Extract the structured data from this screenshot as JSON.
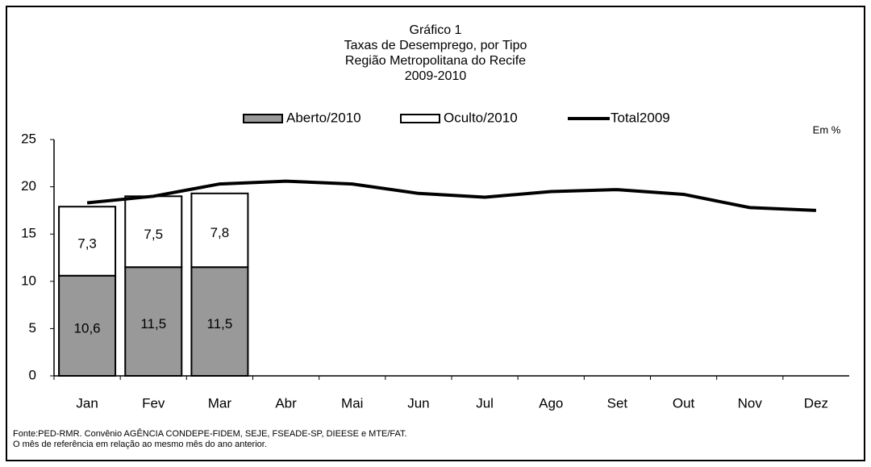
{
  "chart_data": {
    "type": "bar",
    "title_lines": [
      "Gráfico 1",
      "Taxas de Desemprego, por Tipo",
      "Região Metropolitana do Recife",
      "2009-2010"
    ],
    "unit_note": "Em %",
    "categories": [
      "Jan",
      "Fev",
      "Mar",
      "Abr",
      "Mai",
      "Jun",
      "Jul",
      "Ago",
      "Set",
      "Out",
      "Nov",
      "Dez"
    ],
    "series": [
      {
        "name": "Aberto/2010",
        "type": "bar",
        "color": "#999999",
        "values": [
          10.6,
          11.5,
          11.5,
          null,
          null,
          null,
          null,
          null,
          null,
          null,
          null,
          null
        ],
        "value_labels": [
          "10,6",
          "11,5",
          "11,5",
          null,
          null,
          null,
          null,
          null,
          null,
          null,
          null,
          null
        ]
      },
      {
        "name": "Oculto/2010",
        "type": "bar",
        "color": "#ffffff",
        "values": [
          7.3,
          7.5,
          7.8,
          null,
          null,
          null,
          null,
          null,
          null,
          null,
          null,
          null
        ],
        "value_labels": [
          "7,3",
          "7,5",
          "7,8",
          null,
          null,
          null,
          null,
          null,
          null,
          null,
          null,
          null
        ]
      },
      {
        "name": "Total2009",
        "type": "line",
        "color": "#000000",
        "values": [
          18.3,
          19.0,
          20.3,
          20.6,
          20.3,
          19.3,
          18.9,
          19.5,
          19.7,
          19.2,
          17.8,
          17.5
        ]
      }
    ],
    "ylim": [
      0,
      25
    ],
    "yticks": [
      0,
      5,
      10,
      15,
      20,
      25
    ],
    "grid": false,
    "notes": [
      "Fonte:PED-RMR. Convênio AGÊNCIA CONDEPE-FIDEM, SEJE, FSEADE-SP, DIEESE e MTE/FAT.",
      "O mês de referência em relação ao mesmo mês do ano anterior."
    ]
  }
}
